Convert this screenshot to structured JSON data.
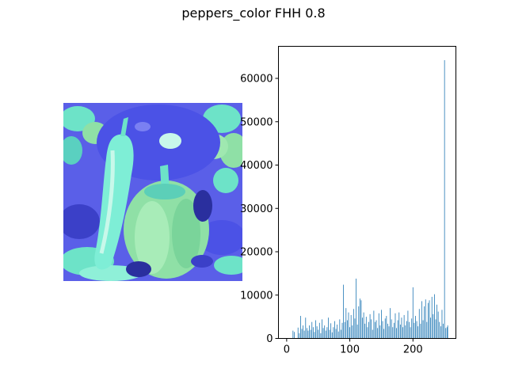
{
  "figure": {
    "title": "peppers_color FHH 0.8"
  },
  "image_panel": {
    "content": "color-remapped peppers photo",
    "palette": {
      "background_blue": "#5a5fe8",
      "pepper_blue": "#4b52e6",
      "pepper_light": "#6de3c8",
      "pepper_green": "#8fe0a6",
      "shadow": "#2a2f9e",
      "highlight": "#c8f8ea"
    }
  },
  "chart_data": {
    "type": "bar",
    "title": "",
    "xlabel": "",
    "ylabel": "",
    "xlim": [
      -13,
      268
    ],
    "ylim": [
      0,
      67400
    ],
    "xticks": [
      0,
      100,
      200
    ],
    "yticks": [
      0,
      10000,
      20000,
      30000,
      40000,
      50000,
      60000
    ],
    "grid": false,
    "bar_color": "#1f77b4",
    "x": [
      10,
      12,
      18,
      20,
      22,
      24,
      26,
      28,
      30,
      32,
      34,
      36,
      38,
      40,
      42,
      44,
      46,
      48,
      50,
      52,
      54,
      56,
      58,
      60,
      62,
      64,
      66,
      68,
      70,
      72,
      74,
      76,
      78,
      80,
      82,
      84,
      86,
      88,
      90,
      92,
      94,
      96,
      98,
      100,
      102,
      104,
      106,
      108,
      110,
      112,
      114,
      116,
      118,
      120,
      122,
      124,
      126,
      128,
      130,
      132,
      134,
      136,
      138,
      140,
      142,
      144,
      146,
      148,
      150,
      152,
      154,
      156,
      158,
      160,
      162,
      164,
      166,
      168,
      170,
      172,
      174,
      176,
      178,
      180,
      182,
      184,
      186,
      188,
      190,
      192,
      194,
      196,
      198,
      200,
      202,
      204,
      206,
      208,
      210,
      212,
      214,
      216,
      218,
      220,
      222,
      224,
      226,
      228,
      230,
      232,
      234,
      236,
      238,
      240,
      242,
      244,
      246,
      248,
      250,
      252,
      254,
      255
    ],
    "y": [
      1800,
      1500,
      2500,
      1200,
      5200,
      2200,
      3000,
      1800,
      4800,
      2400,
      1800,
      3000,
      2000,
      3800,
      2600,
      1500,
      4200,
      2800,
      2000,
      3600,
      1200,
      4400,
      2400,
      3000,
      1800,
      2600,
      4800,
      2000,
      3500,
      1400,
      2600,
      4000,
      2200,
      3200,
      1600,
      4400,
      2000,
      3600,
      12400,
      3800,
      7000,
      4200,
      6000,
      2600,
      5400,
      3000,
      6800,
      4600,
      13800,
      3200,
      7400,
      9200,
      8800,
      4800,
      6000,
      3400,
      5000,
      2600,
      3800,
      5600,
      4400,
      2000,
      6400,
      3800,
      4200,
      2400,
      5800,
      3000,
      6600,
      4000,
      2200,
      4600,
      5200,
      3400,
      2800,
      7000,
      4400,
      2600,
      3600,
      5800,
      2400,
      4200,
      6000,
      3200,
      4800,
      2600,
      5400,
      3000,
      4000,
      6400,
      3800,
      2600,
      4600,
      11800,
      3600,
      5200,
      4000,
      2800,
      6800,
      3400,
      8600,
      4200,
      7400,
      9000,
      3800,
      8200,
      8800,
      4800,
      9600,
      5600,
      10200,
      4400,
      7800,
      6200,
      3800,
      2800,
      6600,
      3400,
      64200,
      2400,
      2600,
      3000
    ]
  }
}
